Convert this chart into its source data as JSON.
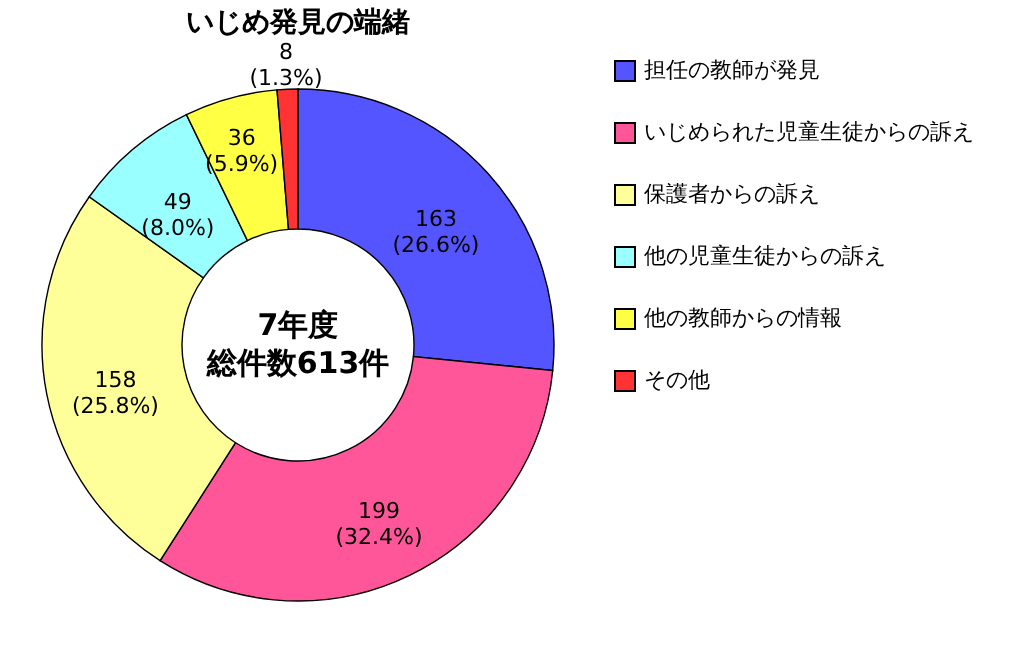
{
  "chart_data": {
    "type": "donut",
    "title": "いじめ発見の端緒",
    "categories": [
      "担任の教師が発見",
      "いじめられた児童生徒からの訴え",
      "保護者からの訴え",
      "他の児童生徒からの訴え",
      "他の教師からの情報",
      "その他"
    ],
    "values": [
      163,
      199,
      158,
      49,
      36,
      8
    ],
    "colors": [
      "#5555ff",
      "#ff5599",
      "#ffff99",
      "#99ffff",
      "#ffff44",
      "#ff3333"
    ],
    "value_labels": [
      "163\n(26.6%)",
      "199\n(32.4%)",
      "158\n(25.8%)",
      "49\n(8.0%)",
      "36\n(5.9%)",
      "8\n(1.3%)"
    ],
    "annotations": [
      "7年度",
      "総件数613件"
    ],
    "legend": "right"
  }
}
